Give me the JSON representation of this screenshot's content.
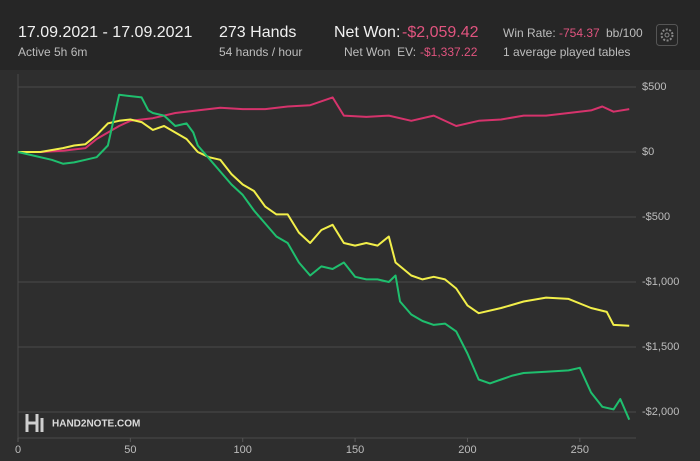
{
  "header": {
    "date_range": "17.09.2021 - 17.09.2021",
    "active": "Active 5h 6m",
    "hands": "273 Hands",
    "hands_per_hour": "54 hands / hour",
    "net_won_label": "Net Won:",
    "net_won": "-$2,059.42",
    "net_won_ev_label": "Net Won  EV:",
    "net_won_ev": "-$1,337.22",
    "win_rate_label": "Win Rate:",
    "win_rate": "-754.37",
    "win_rate_unit": "bb/100",
    "tables": "1 average played tables"
  },
  "logo": "HAND2NOTE.COM",
  "chart_data": {
    "type": "line",
    "xlim": [
      0,
      275
    ],
    "xticks": [
      0,
      50,
      100,
      150,
      200,
      250
    ],
    "ylim": [
      -2200,
      600
    ],
    "yticks": [
      {
        "value": 500,
        "label": "$500"
      },
      {
        "value": 0,
        "label": "$0"
      },
      {
        "value": -500,
        "label": "-$500"
      },
      {
        "value": -1000,
        "label": "-$1,000"
      },
      {
        "value": -1500,
        "label": "-$1,500"
      },
      {
        "value": -2000,
        "label": "-$2,000"
      }
    ],
    "grid": true,
    "series": [
      {
        "color": "#d6336c",
        "x": [
          0,
          10,
          20,
          30,
          35,
          40,
          45,
          50,
          60,
          70,
          80,
          90,
          100,
          110,
          120,
          130,
          140,
          145,
          155,
          165,
          175,
          185,
          195,
          205,
          215,
          225,
          235,
          245,
          255,
          260,
          265,
          272
        ],
        "values": [
          0,
          0,
          10,
          30,
          100,
          150,
          200,
          240,
          260,
          300,
          320,
          340,
          330,
          330,
          350,
          360,
          420,
          280,
          270,
          280,
          240,
          280,
          200,
          240,
          250,
          280,
          280,
          300,
          320,
          350,
          310,
          330
        ]
      },
      {
        "color": "#f2ef4a",
        "x": [
          0,
          10,
          20,
          25,
          30,
          35,
          40,
          45,
          50,
          55,
          60,
          65,
          70,
          75,
          80,
          85,
          90,
          95,
          100,
          105,
          110,
          115,
          120,
          125,
          130,
          135,
          140,
          145,
          150,
          155,
          160,
          165,
          168,
          175,
          180,
          185,
          190,
          195,
          200,
          205,
          215,
          225,
          235,
          245,
          255,
          262,
          265,
          272
        ],
        "values": [
          0,
          0,
          30,
          50,
          60,
          130,
          220,
          240,
          250,
          230,
          170,
          200,
          150,
          100,
          0,
          -40,
          -60,
          -170,
          -250,
          -300,
          -420,
          -480,
          -480,
          -620,
          -700,
          -600,
          -560,
          -700,
          -720,
          -700,
          -720,
          -650,
          -850,
          -950,
          -980,
          -960,
          -980,
          -1050,
          -1180,
          -1240,
          -1200,
          -1150,
          -1120,
          -1130,
          -1200,
          -1230,
          -1330,
          -1337
        ]
      },
      {
        "color": "#1fbf6e",
        "x": [
          0,
          5,
          15,
          20,
          25,
          30,
          35,
          40,
          45,
          50,
          55,
          58,
          60,
          65,
          70,
          75,
          78,
          80,
          85,
          90,
          95,
          100,
          105,
          110,
          115,
          120,
          125,
          130,
          135,
          140,
          145,
          150,
          155,
          160,
          165,
          168,
          170,
          175,
          180,
          185,
          190,
          195,
          200,
          205,
          210,
          215,
          220,
          225,
          235,
          245,
          250,
          255,
          260,
          265,
          268,
          272
        ],
        "values": [
          0,
          -20,
          -60,
          -90,
          -80,
          -60,
          -40,
          50,
          440,
          430,
          420,
          320,
          300,
          280,
          200,
          220,
          150,
          50,
          -50,
          -150,
          -250,
          -330,
          -450,
          -550,
          -650,
          -700,
          -850,
          -950,
          -880,
          -900,
          -850,
          -960,
          -980,
          -980,
          -1000,
          -950,
          -1150,
          -1250,
          -1300,
          -1330,
          -1320,
          -1380,
          -1550,
          -1750,
          -1780,
          -1750,
          -1720,
          -1700,
          -1690,
          -1680,
          -1660,
          -1850,
          -1960,
          -1980,
          -1900,
          -2059
        ]
      }
    ]
  }
}
